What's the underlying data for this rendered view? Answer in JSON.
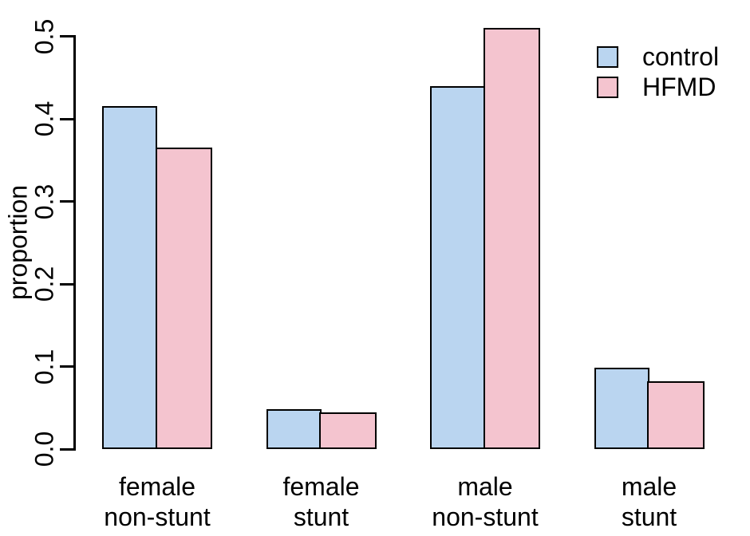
{
  "chart_data": {
    "type": "bar",
    "title": "",
    "xlabel": "",
    "ylabel": "proportion",
    "categories": [
      "female non-stunt",
      "female stunt",
      "male non-stunt",
      "male stunt"
    ],
    "category_lines": [
      [
        "female",
        "non-stunt"
      ],
      [
        "female",
        "stunt"
      ],
      [
        "male",
        "non-stunt"
      ],
      [
        "male",
        "stunt"
      ]
    ],
    "series": [
      {
        "name": "control",
        "color": "#bad5f0",
        "border_color": "#000000",
        "values": [
          0.415,
          0.048,
          0.44,
          0.099
        ]
      },
      {
        "name": "HFMD",
        "color": "#f4c4cf",
        "border_color": "#000000",
        "values": [
          0.365,
          0.044,
          0.51,
          0.082
        ]
      }
    ],
    "ylim": [
      0.0,
      0.5
    ],
    "yticks": [
      0.0,
      0.1,
      0.2,
      0.3,
      0.4,
      0.5
    ],
    "ytick_labels": [
      "0.0",
      "0.1",
      "0.2",
      "0.3",
      "0.4",
      "0.5"
    ],
    "grid": false,
    "legend_position": "top-right",
    "axis_color": "#000000",
    "text_color": "#000000",
    "background": "#ffffff"
  }
}
